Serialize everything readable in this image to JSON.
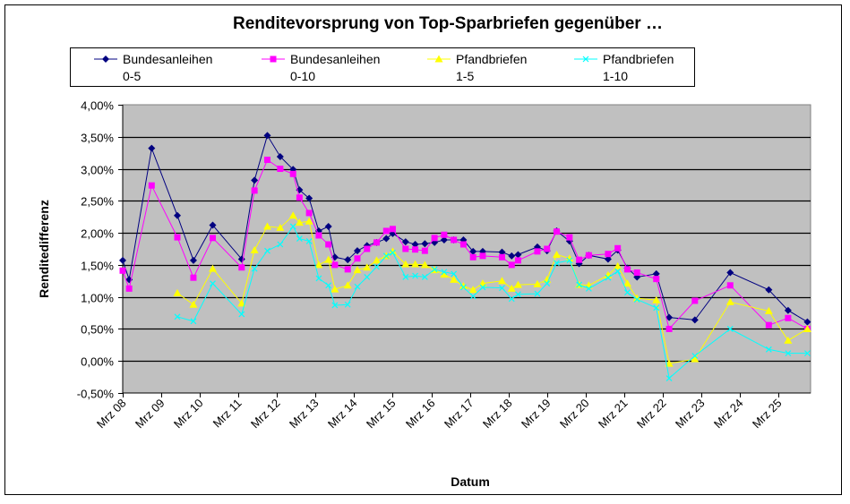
{
  "chart_data": {
    "type": "line",
    "title": "Renditevorsprung von Top-Sparbriefen gegenüber …",
    "xlabel": "Datum",
    "ylabel": "Renditedifferenz",
    "ylim": [
      -0.5,
      4.0
    ],
    "xlim": [
      "2008-03",
      "2026-01"
    ],
    "y_ticks": [
      "-0,50%",
      "0,00%",
      "0,50%",
      "1,00%",
      "1,50%",
      "2,00%",
      "2,50%",
      "3,00%",
      "3,50%",
      "4,00%"
    ],
    "y_tick_values": [
      -0.5,
      0,
      0.5,
      1,
      1.5,
      2,
      2.5,
      3,
      3.5,
      4
    ],
    "x_ticks": [
      "Mrz 08",
      "Mrz 09",
      "Mrz 10",
      "Mrz 11",
      "Mrz 12",
      "Mrz 13",
      "Mrz 14",
      "Mrz 15",
      "Mrz 16",
      "Mrz 17",
      "Mrz 18",
      "Mrz 19",
      "Mrz 20",
      "Mrz 21",
      "Mrz 22",
      "Mrz 23",
      "Mrz 24",
      "Mrz 25"
    ],
    "x_tick_dates": [
      "2008-03",
      "2009-03",
      "2010-03",
      "2011-03",
      "2012-03",
      "2013-03",
      "2014-03",
      "2015-03",
      "2016-03",
      "2017-03",
      "2018-03",
      "2019-03",
      "2020-03",
      "2021-03",
      "2022-03",
      "2023-03",
      "2024-03",
      "2025-03"
    ],
    "grid": "horizontal",
    "legend": "top",
    "plot_background": "#C0C0C0",
    "x": [
      "2008-03",
      "2008-05",
      "2008-12",
      "2009-08",
      "2010-01",
      "2010-07",
      "2011-04",
      "2011-08",
      "2011-12",
      "2012-04",
      "2012-08",
      "2012-10",
      "2013-01",
      "2013-04",
      "2013-07",
      "2013-09",
      "2014-01",
      "2014-04",
      "2014-07",
      "2014-10",
      "2015-01",
      "2015-03",
      "2015-07",
      "2015-10",
      "2016-01",
      "2016-04",
      "2016-07",
      "2016-10",
      "2017-01",
      "2017-04",
      "2017-07",
      "2018-01",
      "2018-04",
      "2018-06",
      "2018-12",
      "2019-03",
      "2019-06",
      "2019-10",
      "2020-01",
      "2020-04",
      "2020-10",
      "2021-01",
      "2021-04",
      "2021-07",
      "2022-01",
      "2022-05",
      "2023-01",
      "2023-12",
      "2024-12",
      "2025-06",
      "2025-12"
    ],
    "series": [
      {
        "name_line1": "Bundesanleihen",
        "name_line2": "0-5",
        "color": "#000080",
        "marker": "diamond",
        "values": [
          1.57,
          1.27,
          3.32,
          2.27,
          1.57,
          2.12,
          1.59,
          2.82,
          3.52,
          3.19,
          2.99,
          2.67,
          2.54,
          2.03,
          2.1,
          1.62,
          1.58,
          1.72,
          1.8,
          1.85,
          1.91,
          1.99,
          1.86,
          1.82,
          1.83,
          1.85,
          1.89,
          1.89,
          1.89,
          1.71,
          1.71,
          1.7,
          1.64,
          1.66,
          1.78,
          1.72,
          2.03,
          1.87,
          1.52,
          1.65,
          1.59,
          1.73,
          1.45,
          1.31,
          1.36,
          0.68,
          0.64,
          1.38,
          1.11,
          0.79,
          0.61
        ]
      },
      {
        "name_line1": "Bundesanleihen",
        "name_line2": "0-10",
        "color": "#FF00FF",
        "marker": "square",
        "values": [
          1.41,
          1.13,
          2.74,
          1.93,
          1.3,
          1.92,
          1.46,
          2.66,
          3.14,
          3.0,
          2.92,
          2.55,
          2.31,
          1.96,
          1.82,
          1.5,
          1.43,
          1.6,
          1.75,
          1.85,
          2.03,
          2.06,
          1.75,
          1.74,
          1.72,
          1.92,
          1.97,
          1.89,
          1.82,
          1.62,
          1.64,
          1.62,
          1.5,
          1.57,
          1.71,
          1.75,
          2.02,
          1.93,
          1.58,
          1.65,
          1.67,
          1.76,
          1.43,
          1.38,
          1.28,
          0.5,
          0.94,
          1.18,
          0.56,
          0.67,
          0.5
        ]
      },
      {
        "name_line1": "Pfandbriefen",
        "name_line2": "1-5",
        "color": "#FFFF00",
        "marker": "triangle",
        "values": [
          null,
          null,
          null,
          1.06,
          0.88,
          1.44,
          0.9,
          1.73,
          2.1,
          2.08,
          2.27,
          2.16,
          2.18,
          1.5,
          1.58,
          1.12,
          1.18,
          1.42,
          1.46,
          1.57,
          1.64,
          1.71,
          1.51,
          1.51,
          1.5,
          1.42,
          1.35,
          1.27,
          1.17,
          1.11,
          1.21,
          1.25,
          1.13,
          1.19,
          1.2,
          1.27,
          1.66,
          1.6,
          1.19,
          1.18,
          1.34,
          1.48,
          1.21,
          0.98,
          0.95,
          -0.04,
          0.03,
          0.92,
          0.78,
          0.32,
          0.5
        ]
      },
      {
        "name_line1": "Pfandbriefen",
        "name_line2": "1-10",
        "color": "#00FFFF",
        "marker": "x",
        "values": [
          null,
          null,
          null,
          0.69,
          0.62,
          1.21,
          0.73,
          1.44,
          1.72,
          1.82,
          2.1,
          1.91,
          1.87,
          1.29,
          1.18,
          0.87,
          0.88,
          1.16,
          1.31,
          1.47,
          1.64,
          1.69,
          1.31,
          1.33,
          1.31,
          1.43,
          1.39,
          1.36,
          1.15,
          1.01,
          1.15,
          1.14,
          0.97,
          1.04,
          1.05,
          1.21,
          1.53,
          1.57,
          1.19,
          1.13,
          1.3,
          1.4,
          1.07,
          0.96,
          0.83,
          -0.27,
          0.08,
          0.5,
          0.18,
          0.12,
          0.12
        ]
      }
    ]
  }
}
